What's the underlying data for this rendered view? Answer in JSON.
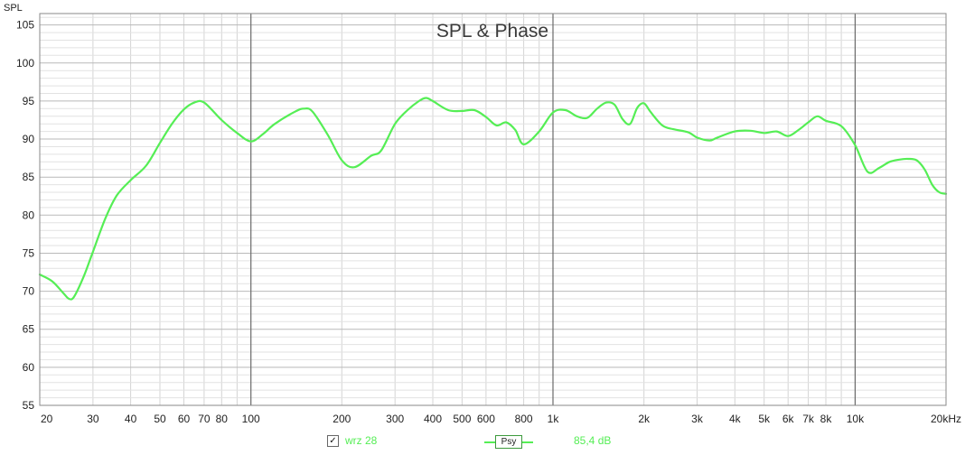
{
  "chart_data": {
    "type": "line",
    "title": "SPL & Phase",
    "ylabel": "SPL",
    "xscale": "log",
    "xlim": [
      20,
      20000
    ],
    "ylim": [
      55,
      106.5
    ],
    "grid": true,
    "yticks": [
      55,
      60,
      65,
      70,
      75,
      80,
      85,
      90,
      95,
      100,
      105
    ],
    "xticks": [
      {
        "value": 20,
        "label": "20"
      },
      {
        "value": 30,
        "label": "30"
      },
      {
        "value": 40,
        "label": "40"
      },
      {
        "value": 50,
        "label": "50"
      },
      {
        "value": 60,
        "label": "60"
      },
      {
        "value": 70,
        "label": "70"
      },
      {
        "value": 80,
        "label": "80"
      },
      {
        "value": 100,
        "label": "100"
      },
      {
        "value": 200,
        "label": "200"
      },
      {
        "value": 300,
        "label": "300"
      },
      {
        "value": 400,
        "label": "400"
      },
      {
        "value": 500,
        "label": "500"
      },
      {
        "value": 600,
        "label": "600"
      },
      {
        "value": 800,
        "label": "800"
      },
      {
        "value": 1000,
        "label": "1k"
      },
      {
        "value": 2000,
        "label": "2k"
      },
      {
        "value": 3000,
        "label": "3k"
      },
      {
        "value": 4000,
        "label": "4k"
      },
      {
        "value": 5000,
        "label": "5k"
      },
      {
        "value": 6000,
        "label": "6k"
      },
      {
        "value": 7000,
        "label": "7k"
      },
      {
        "value": 8000,
        "label": "8k"
      },
      {
        "value": 10000,
        "label": "10k"
      },
      {
        "value": 20000,
        "label": "20kHz"
      }
    ],
    "series": [
      {
        "name": "wrz 28",
        "color": "#55ee55",
        "x": [
          20,
          22,
          24,
          25,
          26,
          28,
          30,
          33,
          36,
          40,
          45,
          50,
          55,
          60,
          65,
          70,
          80,
          90,
          100,
          110,
          120,
          140,
          150,
          160,
          180,
          200,
          220,
          250,
          270,
          300,
          330,
          360,
          380,
          400,
          450,
          500,
          550,
          600,
          650,
          700,
          750,
          800,
          900,
          1000,
          1100,
          1200,
          1300,
          1400,
          1500,
          1600,
          1700,
          1800,
          1900,
          2000,
          2100,
          2300,
          2500,
          2800,
          3000,
          3300,
          3500,
          4000,
          4500,
          5000,
          5500,
          6000,
          6500,
          7000,
          7500,
          8000,
          9000,
          10000,
          11000,
          12000,
          13000,
          14000,
          15000,
          16000,
          17000,
          18000,
          19000,
          20000
        ],
        "y": [
          72.2,
          71.3,
          69.7,
          69.0,
          69.3,
          72.0,
          75.2,
          79.6,
          82.6,
          84.6,
          86.5,
          89.5,
          92.1,
          93.9,
          94.8,
          94.8,
          92.5,
          90.8,
          89.7,
          90.7,
          92.0,
          93.6,
          94.0,
          93.6,
          90.5,
          87.2,
          86.3,
          87.8,
          88.5,
          92.0,
          93.8,
          95.0,
          95.4,
          95.0,
          93.8,
          93.7,
          93.8,
          92.9,
          91.8,
          92.2,
          91.2,
          89.3,
          91.0,
          93.5,
          93.8,
          93.0,
          92.8,
          94.0,
          94.8,
          94.5,
          92.6,
          92.0,
          94.1,
          94.7,
          93.6,
          91.8,
          91.3,
          90.9,
          90.2,
          89.8,
          90.2,
          91.0,
          91.1,
          90.8,
          91.0,
          90.4,
          91.2,
          92.2,
          93.0,
          92.4,
          91.7,
          89.2,
          85.7,
          86.2,
          87.0,
          87.3,
          87.4,
          87.2,
          86.0,
          84.0,
          83.0,
          82.8
        ]
      }
    ]
  },
  "legend": {
    "checkbox_mark": "✓",
    "series_name": "wrz 28",
    "sample_label": "Psy",
    "value_label": "85,4 dB"
  }
}
